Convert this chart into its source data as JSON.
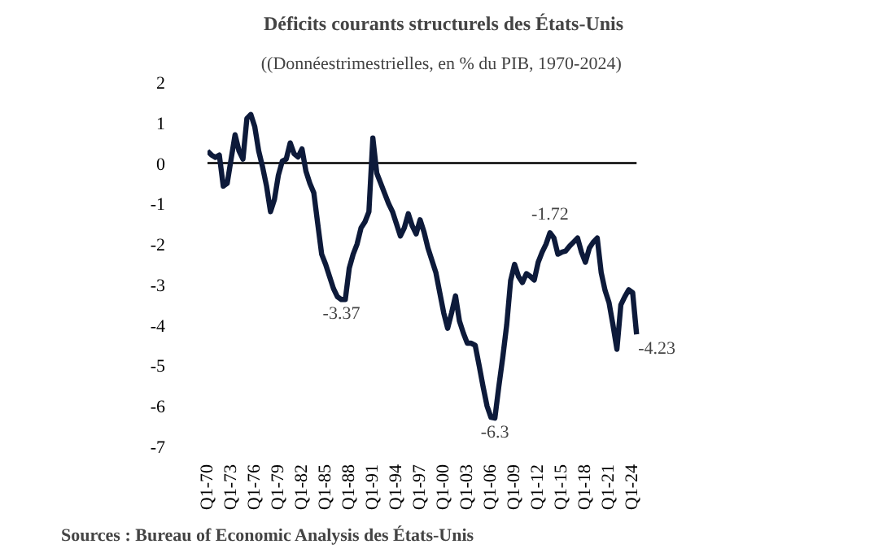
{
  "chart_data": {
    "type": "line",
    "title": "Déficits courants structurels des États-Unis",
    "subtitle": "((Donnéestrimestrielles,  en % du PIB, 1970-2024)",
    "categories": [
      "Q1-70",
      null,
      null,
      null,
      null,
      null,
      "Q1-73",
      null,
      null,
      null,
      null,
      null,
      "Q1-76",
      null,
      null,
      null,
      null,
      null,
      "Q1-79",
      null,
      null,
      null,
      null,
      null,
      "Q1-82",
      null,
      null,
      null,
      null,
      null,
      "Q1-85",
      null,
      null,
      null,
      null,
      null,
      "Q1-88",
      null,
      null,
      null,
      null,
      null,
      "Q1-91",
      null,
      null,
      null,
      null,
      null,
      "Q1-94",
      null,
      null,
      null,
      null,
      null,
      "Q1-97",
      null,
      null,
      null,
      null,
      null,
      "Q1-00",
      null,
      null,
      null,
      null,
      null,
      "Q1-03",
      null,
      null,
      null,
      null,
      null,
      "Q1-06",
      null,
      null,
      null,
      null,
      null,
      "Q1-09",
      null,
      null,
      null,
      null,
      null,
      "Q1-12",
      null,
      null,
      null,
      null,
      null,
      "Q1-15",
      null,
      null,
      null,
      null,
      null,
      "Q1-18",
      null,
      null,
      null,
      null,
      null,
      "Q1-21",
      null,
      null,
      null,
      null,
      null,
      "Q1-24",
      null
    ],
    "series": [
      {
        "color": "#0d1a3a",
        "values": [
          0.3,
          0.2,
          0.14,
          0.2,
          -0.57,
          -0.5,
          0.1,
          0.7,
          0.3,
          0.1,
          1.1,
          1.2,
          0.9,
          0.3,
          -0.1,
          -0.57,
          -1.2,
          -0.9,
          -0.3,
          0.05,
          0.1,
          0.5,
          0.23,
          0.15,
          0.35,
          -0.2,
          -0.5,
          -0.73,
          -1.5,
          -2.25,
          -2.5,
          -2.8,
          -3.1,
          -3.3,
          -3.37,
          -3.37,
          -2.6,
          -2.25,
          -2.0,
          -1.6,
          -1.45,
          -1.2,
          0.62,
          -0.25,
          -0.5,
          -0.75,
          -1.0,
          -1.2,
          -1.5,
          -1.8,
          -1.6,
          -1.25,
          -1.55,
          -1.75,
          -1.4,
          -1.7,
          -2.1,
          -2.4,
          -2.7,
          -3.2,
          -3.7,
          -4.08,
          -3.7,
          -3.28,
          -3.9,
          -4.2,
          -4.45,
          -4.45,
          -4.5,
          -5.0,
          -5.52,
          -6.0,
          -6.28,
          -6.3,
          -5.52,
          -4.8,
          -4.0,
          -2.9,
          -2.5,
          -2.8,
          -2.95,
          -2.73,
          -2.8,
          -2.89,
          -2.45,
          -2.2,
          -2.0,
          -1.72,
          -1.85,
          -2.25,
          -2.2,
          -2.17,
          -2.05,
          -1.95,
          -1.85,
          -2.2,
          -2.45,
          -2.1,
          -1.95,
          -1.85,
          -2.7,
          -3.15,
          -3.45,
          -4.0,
          -4.6,
          -3.5,
          -3.3,
          -3.13,
          -3.2,
          -4.23
        ]
      }
    ],
    "ylim": [
      -7,
      2
    ],
    "yticks": [
      -7,
      -6,
      -5,
      -4,
      -3,
      -2,
      -1,
      0,
      1,
      2
    ],
    "ref_lines": [
      {
        "axis": "y",
        "value": 0,
        "color": "#000000"
      }
    ],
    "annotations": [
      {
        "text": "-3.37",
        "y": -3.37
      },
      {
        "text": "-6.3",
        "y": -6.3
      },
      {
        "text": "-1.72",
        "y": -1.72
      },
      "-4.23",
      "Sources : Bureau of Economic Analysis des États-Unis"
    ],
    "grid": false,
    "line_style": "solid",
    "marker": "none"
  }
}
